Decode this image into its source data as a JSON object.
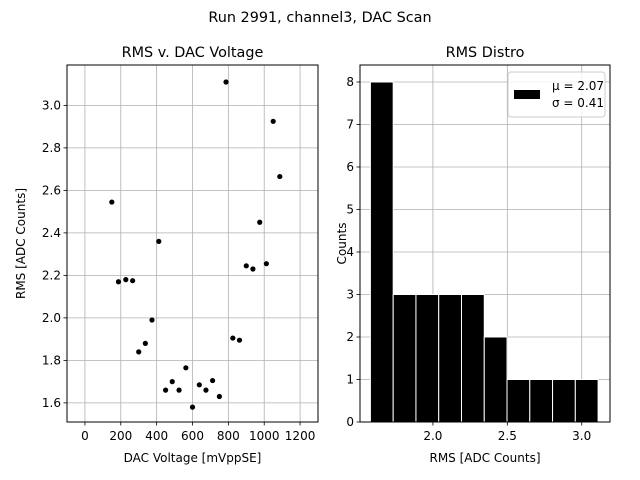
{
  "suptitle": "Run 2991, channel3, DAC Scan",
  "chart_data": [
    {
      "type": "scatter",
      "title": "RMS v. DAC Voltage",
      "xlabel": "DAC Voltage [mVppSE]",
      "ylabel": "RMS [ADC Counts]",
      "xlim": [
        -100,
        1300
      ],
      "ylim": [
        1.51,
        3.19
      ],
      "xticks": [
        0,
        200,
        400,
        600,
        800,
        1000,
        1200
      ],
      "yticks": [
        1.6,
        1.8,
        2.0,
        2.2,
        2.4,
        2.6,
        2.8,
        3.0
      ],
      "xtick_labels": [
        "0",
        "200",
        "400",
        "600",
        "800",
        "1000",
        "1200"
      ],
      "ytick_labels": [
        "1.6",
        "1.8",
        "2.0",
        "2.2",
        "2.4",
        "2.6",
        "2.8",
        "3.0"
      ],
      "grid": true,
      "marker_color": "#000000",
      "points": [
        {
          "x": 150,
          "y": 2.545
        },
        {
          "x": 187,
          "y": 2.17
        },
        {
          "x": 228,
          "y": 2.18
        },
        {
          "x": 266,
          "y": 2.175
        },
        {
          "x": 300,
          "y": 1.84
        },
        {
          "x": 337,
          "y": 1.88
        },
        {
          "x": 374,
          "y": 1.99
        },
        {
          "x": 412,
          "y": 2.36
        },
        {
          "x": 450,
          "y": 1.66
        },
        {
          "x": 487,
          "y": 1.7
        },
        {
          "x": 525,
          "y": 1.66
        },
        {
          "x": 563,
          "y": 1.765
        },
        {
          "x": 600,
          "y": 1.58
        },
        {
          "x": 638,
          "y": 1.685
        },
        {
          "x": 675,
          "y": 1.66
        },
        {
          "x": 712,
          "y": 1.705
        },
        {
          "x": 750,
          "y": 1.63
        },
        {
          "x": 787,
          "y": 3.11
        },
        {
          "x": 825,
          "y": 1.905
        },
        {
          "x": 862,
          "y": 1.895
        },
        {
          "x": 900,
          "y": 2.245
        },
        {
          "x": 937,
          "y": 2.23
        },
        {
          "x": 975,
          "y": 2.45
        },
        {
          "x": 1012,
          "y": 2.255
        },
        {
          "x": 1050,
          "y": 2.925
        },
        {
          "x": 1087,
          "y": 2.665
        }
      ]
    },
    {
      "type": "bar",
      "subtype": "histogram",
      "title": "RMS Distro",
      "xlabel": "RMS [ADC Counts]",
      "ylabel": "Counts",
      "xlim": [
        1.51,
        3.19
      ],
      "ylim": [
        0,
        8.4
      ],
      "xticks": [
        2.0,
        2.5,
        3.0
      ],
      "yticks": [
        0,
        1,
        2,
        3,
        4,
        5,
        6,
        7,
        8
      ],
      "xtick_labels": [
        "2.0",
        "2.5",
        "3.0"
      ],
      "ytick_labels": [
        "0",
        "1",
        "2",
        "3",
        "4",
        "5",
        "6",
        "7",
        "8"
      ],
      "grid": true,
      "bar_color": "#000000",
      "bar_edge_color": "#ffffff",
      "bin_edges": [
        1.58,
        1.733,
        1.886,
        2.039,
        2.192,
        2.345,
        2.498,
        2.651,
        2.804,
        2.957,
        3.11
      ],
      "counts": [
        8,
        3,
        3,
        3,
        3,
        2,
        1,
        1,
        1,
        1
      ],
      "legend": {
        "placement": "top-right",
        "mu_label": "μ = 2.07",
        "sigma_label": "σ = 0.41"
      }
    }
  ]
}
